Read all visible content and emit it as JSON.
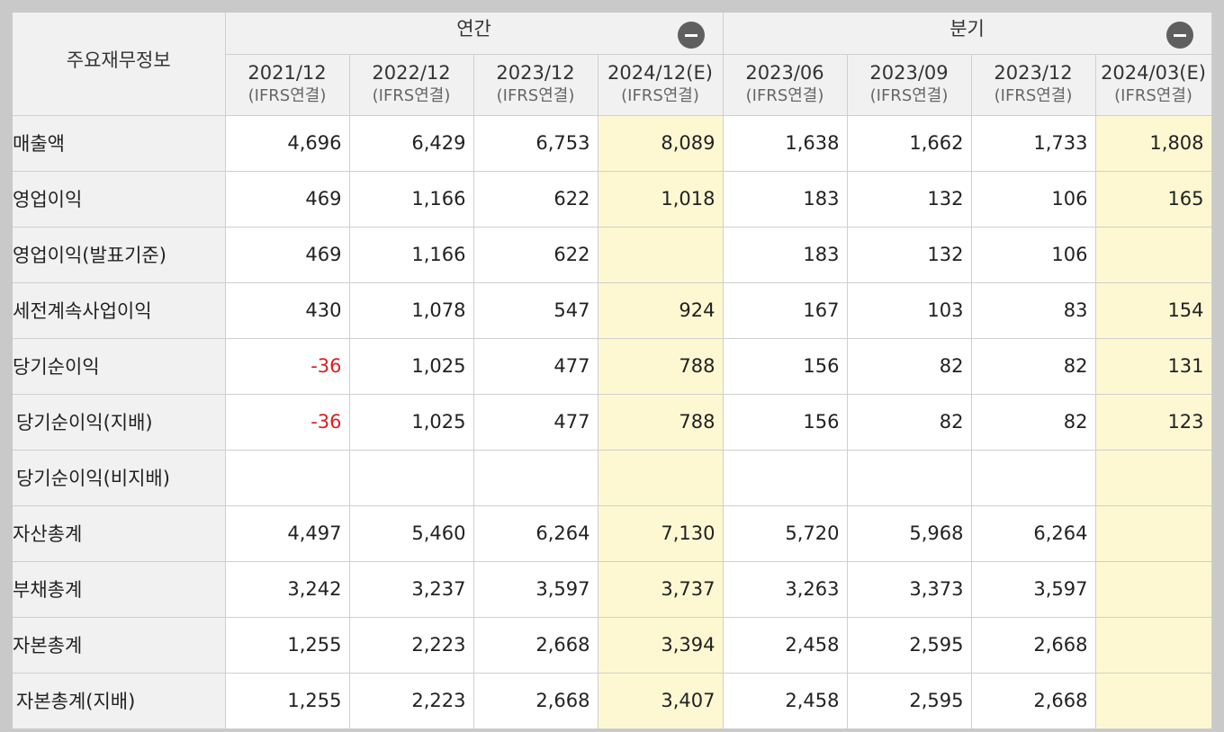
{
  "header": {
    "corner_label": "주요재무정보",
    "annual_group": "연간",
    "quarterly_group": "분기",
    "periods": [
      {
        "date": "2021/12",
        "basis": "(IFRS연결)"
      },
      {
        "date": "2022/12",
        "basis": "(IFRS연결)"
      },
      {
        "date": "2023/12",
        "basis": "(IFRS연결)"
      },
      {
        "date": "2024/12(E)",
        "basis": "(IFRS연결)"
      },
      {
        "date": "2023/06",
        "basis": "(IFRS연결)"
      },
      {
        "date": "2023/09",
        "basis": "(IFRS연결)"
      },
      {
        "date": "2023/12",
        "basis": "(IFRS연결)"
      },
      {
        "date": "2024/03(E)",
        "basis": "(IFRS연결)"
      }
    ]
  },
  "colors": {
    "estimate_bg": "#fdf8d2",
    "negative_text": "#dd1f1f",
    "header_bg": "#f1f1f1"
  },
  "icons": {
    "annual_collapse": "minus-circle-icon",
    "quarterly_collapse": "minus-circle-icon"
  },
  "rows": [
    {
      "label": "매출액",
      "values": [
        "4,696",
        "6,429",
        "6,753",
        "8,089",
        "1,638",
        "1,662",
        "1,733",
        "1,808"
      ]
    },
    {
      "label": "영업이익",
      "values": [
        "469",
        "1,166",
        "622",
        "1,018",
        "183",
        "132",
        "106",
        "165"
      ]
    },
    {
      "label": "영업이익(발표기준)",
      "values": [
        "469",
        "1,166",
        "622",
        "",
        "183",
        "132",
        "106",
        ""
      ]
    },
    {
      "label": "세전계속사업이익",
      "values": [
        "430",
        "1,078",
        "547",
        "924",
        "167",
        "103",
        "83",
        "154"
      ]
    },
    {
      "label": "당기순이익",
      "values": [
        "-36",
        "1,025",
        "477",
        "788",
        "156",
        "82",
        "82",
        "131"
      ]
    },
    {
      "label": "당기순이익(지배)",
      "values": [
        "-36",
        "1,025",
        "477",
        "788",
        "156",
        "82",
        "82",
        "123"
      ]
    },
    {
      "label": "당기순이익(비지배)",
      "values": [
        "",
        "",
        "",
        "",
        "",
        "",
        "",
        ""
      ]
    },
    {
      "label": "자산총계",
      "values": [
        "4,497",
        "5,460",
        "6,264",
        "7,130",
        "5,720",
        "5,968",
        "6,264",
        ""
      ]
    },
    {
      "label": "부채총계",
      "values": [
        "3,242",
        "3,237",
        "3,597",
        "3,737",
        "3,263",
        "3,373",
        "3,597",
        ""
      ]
    },
    {
      "label": "자본총계",
      "values": [
        "1,255",
        "2,223",
        "2,668",
        "3,394",
        "2,458",
        "2,595",
        "2,668",
        ""
      ]
    },
    {
      "label": "자본총계(지배)",
      "values": [
        "1,255",
        "2,223",
        "2,668",
        "3,407",
        "2,458",
        "2,595",
        "2,668",
        ""
      ]
    }
  ]
}
